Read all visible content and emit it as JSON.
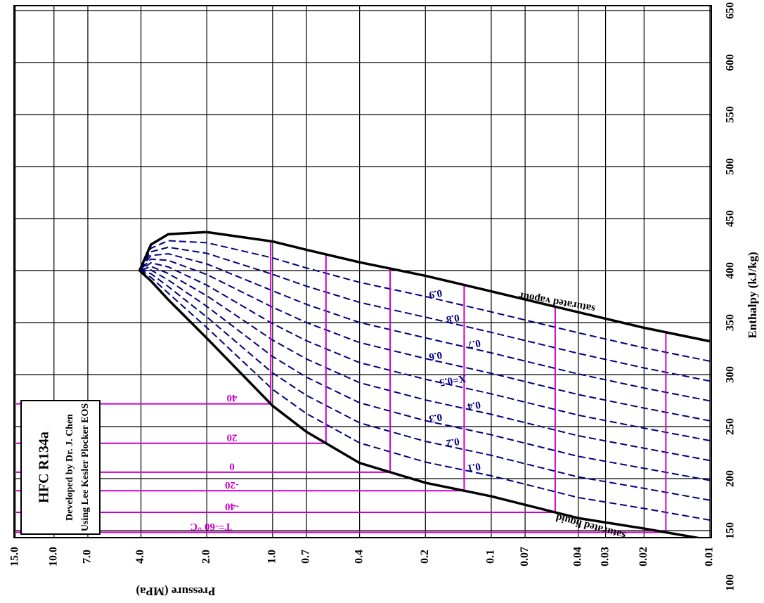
{
  "chart_data": {
    "type": "line",
    "title_lines": [
      "HFC   R134a",
      "Developed by Dr. J. Chen",
      "Using Lee Kesler Plocker EOS"
    ],
    "x_label": "Pressure (MPa)",
    "y_label": "Enthalpy (kJ/kg)",
    "xscale": "log",
    "xlim": [
      15,
      0.01
    ],
    "ylim": [
      100,
      650
    ],
    "xticks": [
      {
        "value": 15,
        "label": "15.0"
      },
      {
        "value": 10,
        "label": "10.0"
      },
      {
        "value": 7,
        "label": "7.0"
      },
      {
        "value": 4,
        "label": "4.0"
      },
      {
        "value": 2,
        "label": "2.0"
      },
      {
        "value": 1,
        "label": "1.0"
      },
      0.7,
      0.4,
      0.2,
      0.1,
      0.07,
      0.04,
      0.03,
      0.02,
      0.01
    ],
    "yticks": [
      100,
      150,
      200,
      250,
      300,
      350,
      400,
      450,
      500,
      550,
      600,
      650
    ],
    "grid": true,
    "x": [
      0.01,
      0.02,
      0.04,
      0.1,
      0.2,
      0.4,
      0.7,
      1.0,
      2.0,
      3.0,
      3.6,
      4.06
    ],
    "series": [
      {
        "name": "saturated liquid",
        "color": "#000000",
        "values": [
          141,
          152,
          162,
          183,
          196,
          215,
          245,
          270,
          335,
          372,
          390,
          400
        ]
      },
      {
        "name": "saturated vapour",
        "color": "#000000",
        "values": [
          332,
          345,
          360,
          380,
          395,
          408,
          420,
          428,
          437,
          435,
          425,
          400
        ]
      }
    ],
    "isotherms": {
      "color": "#cc00cc",
      "labels": [
        "T=-60 °C",
        "-40",
        "-20",
        "0",
        "20",
        "40"
      ],
      "psat": [
        0.0159,
        0.051,
        0.133,
        0.29,
        0.57,
        1.02
      ]
    },
    "quality": {
      "color": "#000080",
      "values": [
        0.1,
        0.2,
        0.3,
        0.4,
        {
          "value": 0.5,
          "label": "X=0.5"
        },
        0.6,
        0.7,
        0.8,
        0.9
      ]
    }
  }
}
